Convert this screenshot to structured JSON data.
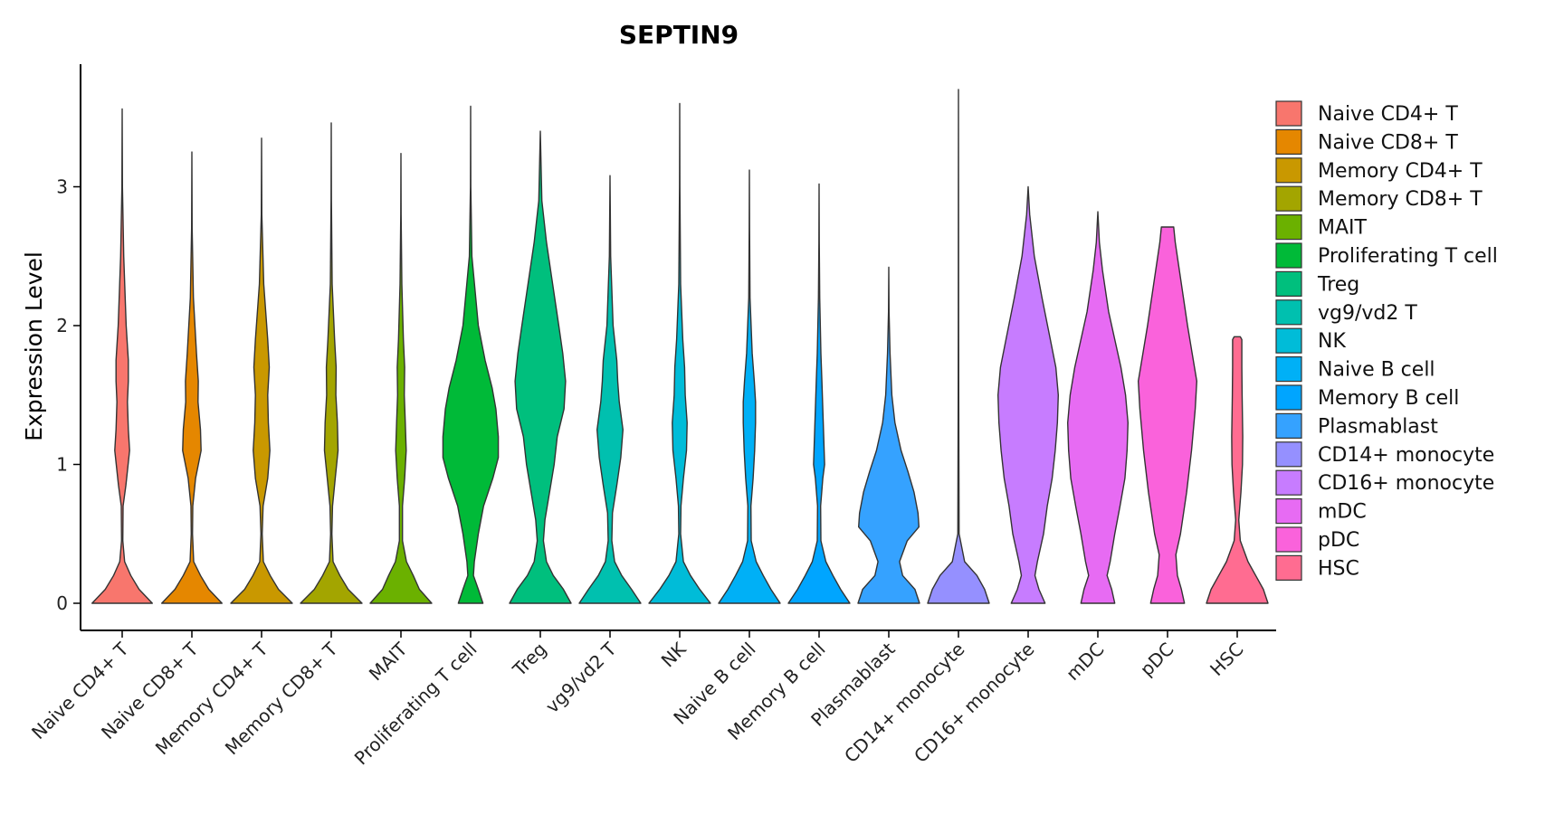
{
  "chart_data": {
    "type": "violin",
    "title": "SEPTIN9",
    "xlabel": "",
    "ylabel": "Expression Level",
    "ylim": [
      -0.18,
      3.9
    ],
    "yticks": [
      0,
      1,
      2,
      3
    ],
    "legend_position": "right",
    "categories": [
      "Naive CD4+ T",
      "Naive CD8+ T",
      "Memory CD4+ T",
      "Memory CD8+ T",
      "MAIT",
      "Proliferating T cell",
      "Treg",
      "vg9/vd2 T",
      "NK",
      "Naive B cell",
      "Memory B cell",
      "Plasmablast",
      "CD14+ monocyte",
      "CD16+ monocyte",
      "mDC",
      "pDC",
      "HSC"
    ],
    "colors": [
      "#F8766D",
      "#E58700",
      "#C99800",
      "#A3A500",
      "#6BB100",
      "#00BA38",
      "#00BF7D",
      "#00C0AF",
      "#00BCD8",
      "#00B0F6",
      "#00A5FF",
      "#35A2FF",
      "#9590FF",
      "#C77CFF",
      "#E76BF3",
      "#FA62DB",
      "#FF6C91"
    ],
    "max_values": [
      3.56,
      3.25,
      3.35,
      3.46,
      3.24,
      3.58,
      3.4,
      3.08,
      3.6,
      3.12,
      3.02,
      2.42,
      3.7,
      3.0,
      2.82,
      2.71,
      1.92
    ],
    "density_profiles": [
      [
        [
          0,
          0.98
        ],
        [
          0.1,
          0.55
        ],
        [
          0.2,
          0.28
        ],
        [
          0.3,
          0.08
        ],
        [
          0.45,
          0.02
        ],
        [
          0.7,
          0.03
        ],
        [
          0.85,
          0.12
        ],
        [
          1.1,
          0.24
        ],
        [
          1.25,
          0.2
        ],
        [
          1.45,
          0.17
        ],
        [
          1.6,
          0.2
        ],
        [
          1.75,
          0.2
        ],
        [
          2.0,
          0.13
        ],
        [
          2.5,
          0.05
        ],
        [
          3.0,
          0.01
        ],
        [
          3.56,
          0
        ]
      ],
      [
        [
          0,
          0.98
        ],
        [
          0.1,
          0.55
        ],
        [
          0.2,
          0.28
        ],
        [
          0.3,
          0.06
        ],
        [
          0.5,
          0.02
        ],
        [
          0.7,
          0.03
        ],
        [
          0.9,
          0.12
        ],
        [
          1.1,
          0.3
        ],
        [
          1.25,
          0.28
        ],
        [
          1.45,
          0.2
        ],
        [
          1.6,
          0.21
        ],
        [
          1.8,
          0.15
        ],
        [
          2.2,
          0.05
        ],
        [
          2.7,
          0.01
        ],
        [
          3.25,
          0
        ]
      ],
      [
        [
          0,
          1.0
        ],
        [
          0.1,
          0.55
        ],
        [
          0.2,
          0.28
        ],
        [
          0.3,
          0.06
        ],
        [
          0.5,
          0.02
        ],
        [
          0.7,
          0.05
        ],
        [
          0.9,
          0.2
        ],
        [
          1.1,
          0.27
        ],
        [
          1.3,
          0.22
        ],
        [
          1.5,
          0.2
        ],
        [
          1.7,
          0.25
        ],
        [
          1.9,
          0.2
        ],
        [
          2.3,
          0.07
        ],
        [
          2.8,
          0.01
        ],
        [
          3.35,
          0
        ]
      ],
      [
        [
          0,
          1.0
        ],
        [
          0.1,
          0.55
        ],
        [
          0.2,
          0.28
        ],
        [
          0.3,
          0.06
        ],
        [
          0.5,
          0.02
        ],
        [
          0.7,
          0.04
        ],
        [
          0.9,
          0.13
        ],
        [
          1.1,
          0.22
        ],
        [
          1.3,
          0.2
        ],
        [
          1.5,
          0.15
        ],
        [
          1.7,
          0.16
        ],
        [
          1.9,
          0.11
        ],
        [
          2.3,
          0.03
        ],
        [
          2.9,
          0.005
        ],
        [
          3.46,
          0
        ]
      ],
      [
        [
          0,
          1.0
        ],
        [
          0.1,
          0.6
        ],
        [
          0.2,
          0.4
        ],
        [
          0.3,
          0.18
        ],
        [
          0.45,
          0.05
        ],
        [
          0.7,
          0.05
        ],
        [
          0.9,
          0.12
        ],
        [
          1.1,
          0.17
        ],
        [
          1.3,
          0.14
        ],
        [
          1.5,
          0.11
        ],
        [
          1.7,
          0.12
        ],
        [
          1.9,
          0.08
        ],
        [
          2.3,
          0.03
        ],
        [
          2.8,
          0.005
        ],
        [
          3.24,
          0
        ]
      ],
      [
        [
          0,
          0.4
        ],
        [
          0.1,
          0.25
        ],
        [
          0.2,
          0.09
        ],
        [
          0.3,
          0.12
        ],
        [
          0.5,
          0.25
        ],
        [
          0.7,
          0.42
        ],
        [
          0.9,
          0.72
        ],
        [
          1.05,
          0.9
        ],
        [
          1.2,
          0.9
        ],
        [
          1.4,
          0.82
        ],
        [
          1.55,
          0.7
        ],
        [
          1.75,
          0.47
        ],
        [
          2.0,
          0.25
        ],
        [
          2.5,
          0.04
        ],
        [
          3.0,
          0.005
        ],
        [
          3.58,
          0
        ]
      ],
      [
        [
          0,
          1.0
        ],
        [
          0.1,
          0.75
        ],
        [
          0.2,
          0.42
        ],
        [
          0.3,
          0.2
        ],
        [
          0.45,
          0.1
        ],
        [
          0.6,
          0.15
        ],
        [
          0.8,
          0.3
        ],
        [
          1.0,
          0.45
        ],
        [
          1.2,
          0.55
        ],
        [
          1.4,
          0.77
        ],
        [
          1.6,
          0.82
        ],
        [
          1.8,
          0.73
        ],
        [
          2.0,
          0.6
        ],
        [
          2.3,
          0.4
        ],
        [
          2.6,
          0.2
        ],
        [
          2.9,
          0.05
        ],
        [
          3.4,
          0
        ]
      ],
      [
        [
          0,
          1.0
        ],
        [
          0.1,
          0.7
        ],
        [
          0.2,
          0.38
        ],
        [
          0.3,
          0.15
        ],
        [
          0.45,
          0.06
        ],
        [
          0.65,
          0.08
        ],
        [
          0.85,
          0.22
        ],
        [
          1.05,
          0.35
        ],
        [
          1.25,
          0.42
        ],
        [
          1.45,
          0.3
        ],
        [
          1.6,
          0.25
        ],
        [
          1.75,
          0.22
        ],
        [
          2.0,
          0.1
        ],
        [
          2.5,
          0.02
        ],
        [
          3.08,
          0
        ]
      ],
      [
        [
          0,
          1.0
        ],
        [
          0.1,
          0.65
        ],
        [
          0.2,
          0.35
        ],
        [
          0.3,
          0.12
        ],
        [
          0.5,
          0.03
        ],
        [
          0.7,
          0.04
        ],
        [
          0.9,
          0.12
        ],
        [
          1.1,
          0.22
        ],
        [
          1.3,
          0.24
        ],
        [
          1.5,
          0.18
        ],
        [
          1.7,
          0.16
        ],
        [
          1.9,
          0.1
        ],
        [
          2.3,
          0.03
        ],
        [
          3.0,
          0.005
        ],
        [
          3.6,
          0
        ]
      ],
      [
        [
          0,
          1.0
        ],
        [
          0.1,
          0.7
        ],
        [
          0.2,
          0.45
        ],
        [
          0.3,
          0.22
        ],
        [
          0.45,
          0.06
        ],
        [
          0.7,
          0.05
        ],
        [
          0.9,
          0.12
        ],
        [
          1.1,
          0.17
        ],
        [
          1.3,
          0.2
        ],
        [
          1.45,
          0.2
        ],
        [
          1.6,
          0.16
        ],
        [
          1.8,
          0.09
        ],
        [
          2.2,
          0.02
        ],
        [
          2.7,
          0.005
        ],
        [
          3.12,
          0
        ]
      ],
      [
        [
          0,
          1.0
        ],
        [
          0.1,
          0.7
        ],
        [
          0.2,
          0.45
        ],
        [
          0.3,
          0.22
        ],
        [
          0.45,
          0.06
        ],
        [
          0.7,
          0.05
        ],
        [
          0.9,
          0.12
        ],
        [
          1.0,
          0.18
        ],
        [
          1.2,
          0.15
        ],
        [
          1.4,
          0.12
        ],
        [
          1.6,
          0.09
        ],
        [
          1.8,
          0.06
        ],
        [
          2.2,
          0.02
        ],
        [
          2.6,
          0.005
        ],
        [
          3.02,
          0
        ]
      ],
      [
        [
          0,
          1.0
        ],
        [
          0.1,
          0.85
        ],
        [
          0.2,
          0.45
        ],
        [
          0.3,
          0.35
        ],
        [
          0.45,
          0.6
        ],
        [
          0.55,
          0.98
        ],
        [
          0.65,
          0.95
        ],
        [
          0.8,
          0.82
        ],
        [
          0.95,
          0.62
        ],
        [
          1.1,
          0.4
        ],
        [
          1.3,
          0.2
        ],
        [
          1.5,
          0.1
        ],
        [
          1.8,
          0.04
        ],
        [
          2.1,
          0.01
        ],
        [
          2.42,
          0
        ]
      ],
      [
        [
          0,
          1.0
        ],
        [
          0.1,
          0.85
        ],
        [
          0.2,
          0.6
        ],
        [
          0.3,
          0.2
        ],
        [
          0.5,
          0.02
        ],
        [
          1.0,
          0.015
        ],
        [
          1.5,
          0.01
        ],
        [
          2.0,
          0.005
        ],
        [
          3.0,
          0.002
        ],
        [
          3.7,
          0
        ]
      ],
      [
        [
          0,
          0.55
        ],
        [
          0.1,
          0.35
        ],
        [
          0.2,
          0.22
        ],
        [
          0.3,
          0.3
        ],
        [
          0.5,
          0.5
        ],
        [
          0.7,
          0.62
        ],
        [
          0.9,
          0.78
        ],
        [
          1.1,
          0.88
        ],
        [
          1.3,
          0.95
        ],
        [
          1.5,
          0.98
        ],
        [
          1.7,
          0.9
        ],
        [
          1.9,
          0.72
        ],
        [
          2.2,
          0.45
        ],
        [
          2.5,
          0.2
        ],
        [
          2.8,
          0.05
        ],
        [
          3.0,
          0
        ]
      ],
      [
        [
          0,
          0.55
        ],
        [
          0.1,
          0.45
        ],
        [
          0.2,
          0.3
        ],
        [
          0.3,
          0.4
        ],
        [
          0.5,
          0.55
        ],
        [
          0.7,
          0.72
        ],
        [
          0.9,
          0.88
        ],
        [
          1.1,
          0.95
        ],
        [
          1.3,
          0.98
        ],
        [
          1.5,
          0.9
        ],
        [
          1.7,
          0.75
        ],
        [
          1.9,
          0.55
        ],
        [
          2.1,
          0.35
        ],
        [
          2.4,
          0.15
        ],
        [
          2.6,
          0.05
        ],
        [
          2.82,
          0
        ]
      ],
      [
        [
          0,
          0.55
        ],
        [
          0.1,
          0.45
        ],
        [
          0.2,
          0.32
        ],
        [
          0.35,
          0.27
        ],
        [
          0.5,
          0.42
        ],
        [
          0.8,
          0.62
        ],
        [
          1.1,
          0.78
        ],
        [
          1.4,
          0.9
        ],
        [
          1.6,
          0.95
        ],
        [
          1.8,
          0.8
        ],
        [
          2.0,
          0.65
        ],
        [
          2.3,
          0.45
        ],
        [
          2.6,
          0.25
        ],
        [
          2.71,
          0.2
        ]
      ],
      [
        [
          0,
          1.0
        ],
        [
          0.1,
          0.85
        ],
        [
          0.2,
          0.6
        ],
        [
          0.3,
          0.35
        ],
        [
          0.45,
          0.1
        ],
        [
          0.6,
          0.05
        ],
        [
          0.8,
          0.12
        ],
        [
          1.0,
          0.17
        ],
        [
          1.2,
          0.18
        ],
        [
          1.5,
          0.16
        ],
        [
          1.7,
          0.15
        ],
        [
          1.9,
          0.15
        ],
        [
          1.92,
          0.1
        ]
      ]
    ]
  }
}
